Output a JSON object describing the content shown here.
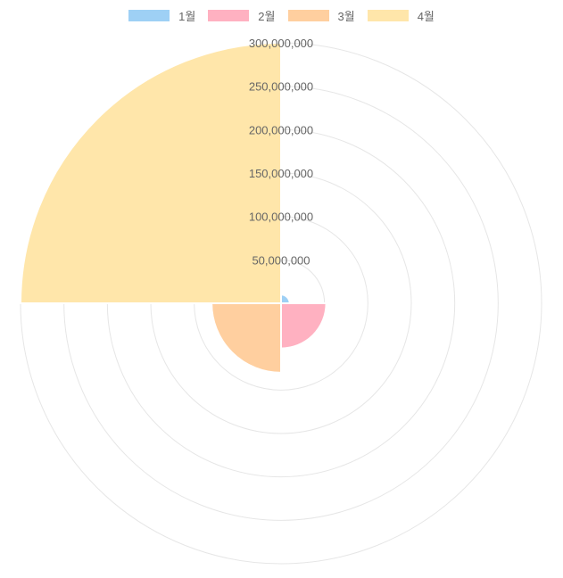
{
  "chart_data": {
    "type": "polarArea",
    "categories": [
      "1월",
      "2월",
      "3월",
      "4월"
    ],
    "values": [
      10000000,
      52000000,
      80000000,
      300000000
    ],
    "colors": [
      "#9ed0f5",
      "#ffb1c1",
      "#ffcf9f",
      "#ffe6aa"
    ],
    "r_range": [
      0,
      300000000
    ],
    "r_ticks": [
      50000000,
      100000000,
      150000000,
      200000000,
      250000000,
      300000000
    ],
    "r_tick_labels": [
      "50,000,000",
      "100,000,000",
      "150,000,000",
      "200,000,000",
      "250,000,000",
      "300,000,000"
    ],
    "legend_position": "top",
    "grid": true,
    "title": ""
  },
  "legend": {
    "items": [
      {
        "label": "1월",
        "color": "#9ed0f5"
      },
      {
        "label": "2월",
        "color": "#ffb1c1"
      },
      {
        "label": "3월",
        "color": "#ffcf9f"
      },
      {
        "label": "4월",
        "color": "#ffe6aa"
      }
    ]
  }
}
